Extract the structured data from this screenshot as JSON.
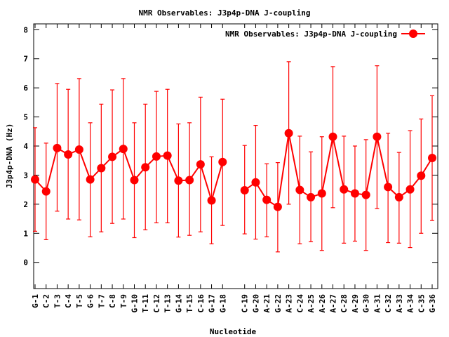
{
  "chart_data": {
    "type": "line",
    "title": "NMR Observables: J3p4p-DNA J-coupling",
    "xlabel": "Nucleotide",
    "ylabel": "J3p4p-DNA (Hz)",
    "ylim": [
      -0.9,
      8.2
    ],
    "yticks": [
      "0",
      "1",
      "2",
      "3",
      "4",
      "5",
      "6",
      "7",
      "8"
    ],
    "legend": {
      "label": "NMR Observables: J3p4p-DNA J-coupling",
      "position": "top-right"
    },
    "color": "#ff0000",
    "gap_after_index": 17,
    "categories": [
      "G-1",
      "C-2",
      "T-3",
      "C-4",
      "T-5",
      "G-6",
      "T-7",
      "C-8",
      "T-9",
      "G-10",
      "T-11",
      "C-12",
      "T-13",
      "G-14",
      "T-15",
      "C-16",
      "G-17",
      "G-18",
      "C-19",
      "G-20",
      "A-21",
      "G-22",
      "A-23",
      "C-24",
      "A-25",
      "A-26",
      "A-27",
      "C-28",
      "A-29",
      "G-30",
      "A-31",
      "C-32",
      "A-33",
      "A-34",
      "C-35",
      "G-36"
    ],
    "values": [
      2.85,
      2.44,
      3.93,
      3.71,
      3.88,
      2.85,
      3.24,
      3.63,
      3.9,
      2.83,
      3.27,
      3.64,
      3.67,
      2.81,
      2.83,
      3.37,
      2.13,
      3.45,
      2.48,
      2.75,
      2.15,
      1.91,
      4.44,
      2.49,
      2.24,
      2.37,
      4.32,
      2.51,
      2.37,
      2.32,
      4.32,
      2.59,
      2.24,
      2.51,
      2.98,
      3.59
    ],
    "err_high": [
      4.63,
      4.1,
      6.15,
      5.95,
      6.32,
      4.8,
      5.44,
      5.93,
      6.32,
      4.8,
      5.44,
      5.88,
      5.95,
      4.76,
      4.8,
      5.68,
      3.63,
      5.61,
      4.02,
      4.71,
      3.39,
      3.43,
      6.9,
      4.34,
      3.8,
      4.32,
      6.73,
      4.34,
      4.0,
      4.22,
      6.76,
      4.44,
      3.78,
      4.53,
      4.93,
      5.73
    ],
    "err_low": [
      1.07,
      0.78,
      1.76,
      1.49,
      1.46,
      0.88,
      1.05,
      1.34,
      1.49,
      0.85,
      1.12,
      1.36,
      1.36,
      0.87,
      0.93,
      1.05,
      0.64,
      1.27,
      0.98,
      0.8,
      0.88,
      0.36,
      2.0,
      0.64,
      0.71,
      0.41,
      1.88,
      0.66,
      0.73,
      0.41,
      1.85,
      0.68,
      0.66,
      0.51,
      1.0,
      1.44
    ]
  }
}
